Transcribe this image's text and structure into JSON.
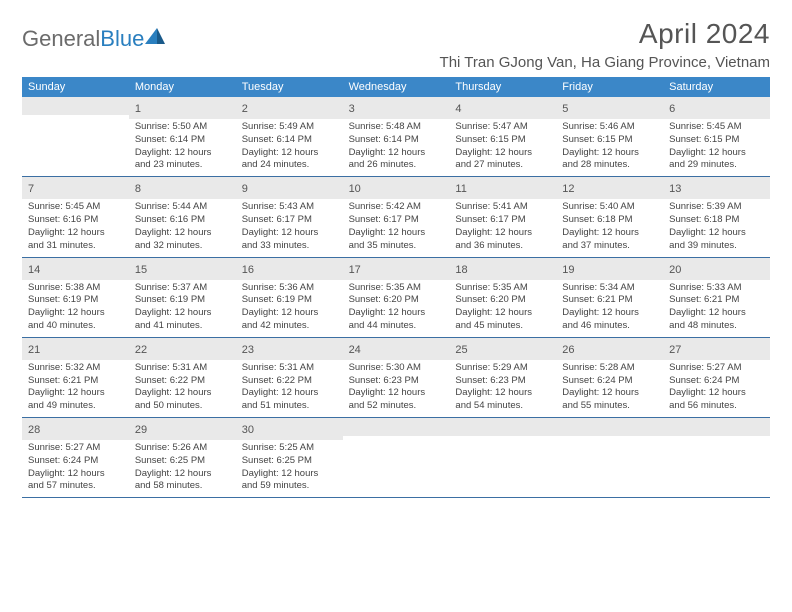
{
  "logo": {
    "text_gray": "General",
    "text_blue": "Blue"
  },
  "header": {
    "month_title": "April 2024",
    "location": "Thi Tran GJong Van, Ha Giang Province, Vietnam"
  },
  "day_names": [
    "Sunday",
    "Monday",
    "Tuesday",
    "Wednesday",
    "Thursday",
    "Friday",
    "Saturday"
  ],
  "colors": {
    "header_bg": "#3b87c8",
    "row_border": "#3b6fa3",
    "numbar_bg": "#e9e9e9",
    "text_body": "#444444",
    "text_muted": "#555555"
  },
  "weeks": [
    [
      null,
      {
        "n": "1",
        "sr": "Sunrise: 5:50 AM",
        "ss": "Sunset: 6:14 PM",
        "d1": "Daylight: 12 hours",
        "d2": "and 23 minutes."
      },
      {
        "n": "2",
        "sr": "Sunrise: 5:49 AM",
        "ss": "Sunset: 6:14 PM",
        "d1": "Daylight: 12 hours",
        "d2": "and 24 minutes."
      },
      {
        "n": "3",
        "sr": "Sunrise: 5:48 AM",
        "ss": "Sunset: 6:14 PM",
        "d1": "Daylight: 12 hours",
        "d2": "and 26 minutes."
      },
      {
        "n": "4",
        "sr": "Sunrise: 5:47 AM",
        "ss": "Sunset: 6:15 PM",
        "d1": "Daylight: 12 hours",
        "d2": "and 27 minutes."
      },
      {
        "n": "5",
        "sr": "Sunrise: 5:46 AM",
        "ss": "Sunset: 6:15 PM",
        "d1": "Daylight: 12 hours",
        "d2": "and 28 minutes."
      },
      {
        "n": "6",
        "sr": "Sunrise: 5:45 AM",
        "ss": "Sunset: 6:15 PM",
        "d1": "Daylight: 12 hours",
        "d2": "and 29 minutes."
      }
    ],
    [
      {
        "n": "7",
        "sr": "Sunrise: 5:45 AM",
        "ss": "Sunset: 6:16 PM",
        "d1": "Daylight: 12 hours",
        "d2": "and 31 minutes."
      },
      {
        "n": "8",
        "sr": "Sunrise: 5:44 AM",
        "ss": "Sunset: 6:16 PM",
        "d1": "Daylight: 12 hours",
        "d2": "and 32 minutes."
      },
      {
        "n": "9",
        "sr": "Sunrise: 5:43 AM",
        "ss": "Sunset: 6:17 PM",
        "d1": "Daylight: 12 hours",
        "d2": "and 33 minutes."
      },
      {
        "n": "10",
        "sr": "Sunrise: 5:42 AM",
        "ss": "Sunset: 6:17 PM",
        "d1": "Daylight: 12 hours",
        "d2": "and 35 minutes."
      },
      {
        "n": "11",
        "sr": "Sunrise: 5:41 AM",
        "ss": "Sunset: 6:17 PM",
        "d1": "Daylight: 12 hours",
        "d2": "and 36 minutes."
      },
      {
        "n": "12",
        "sr": "Sunrise: 5:40 AM",
        "ss": "Sunset: 6:18 PM",
        "d1": "Daylight: 12 hours",
        "d2": "and 37 minutes."
      },
      {
        "n": "13",
        "sr": "Sunrise: 5:39 AM",
        "ss": "Sunset: 6:18 PM",
        "d1": "Daylight: 12 hours",
        "d2": "and 39 minutes."
      }
    ],
    [
      {
        "n": "14",
        "sr": "Sunrise: 5:38 AM",
        "ss": "Sunset: 6:19 PM",
        "d1": "Daylight: 12 hours",
        "d2": "and 40 minutes."
      },
      {
        "n": "15",
        "sr": "Sunrise: 5:37 AM",
        "ss": "Sunset: 6:19 PM",
        "d1": "Daylight: 12 hours",
        "d2": "and 41 minutes."
      },
      {
        "n": "16",
        "sr": "Sunrise: 5:36 AM",
        "ss": "Sunset: 6:19 PM",
        "d1": "Daylight: 12 hours",
        "d2": "and 42 minutes."
      },
      {
        "n": "17",
        "sr": "Sunrise: 5:35 AM",
        "ss": "Sunset: 6:20 PM",
        "d1": "Daylight: 12 hours",
        "d2": "and 44 minutes."
      },
      {
        "n": "18",
        "sr": "Sunrise: 5:35 AM",
        "ss": "Sunset: 6:20 PM",
        "d1": "Daylight: 12 hours",
        "d2": "and 45 minutes."
      },
      {
        "n": "19",
        "sr": "Sunrise: 5:34 AM",
        "ss": "Sunset: 6:21 PM",
        "d1": "Daylight: 12 hours",
        "d2": "and 46 minutes."
      },
      {
        "n": "20",
        "sr": "Sunrise: 5:33 AM",
        "ss": "Sunset: 6:21 PM",
        "d1": "Daylight: 12 hours",
        "d2": "and 48 minutes."
      }
    ],
    [
      {
        "n": "21",
        "sr": "Sunrise: 5:32 AM",
        "ss": "Sunset: 6:21 PM",
        "d1": "Daylight: 12 hours",
        "d2": "and 49 minutes."
      },
      {
        "n": "22",
        "sr": "Sunrise: 5:31 AM",
        "ss": "Sunset: 6:22 PM",
        "d1": "Daylight: 12 hours",
        "d2": "and 50 minutes."
      },
      {
        "n": "23",
        "sr": "Sunrise: 5:31 AM",
        "ss": "Sunset: 6:22 PM",
        "d1": "Daylight: 12 hours",
        "d2": "and 51 minutes."
      },
      {
        "n": "24",
        "sr": "Sunrise: 5:30 AM",
        "ss": "Sunset: 6:23 PM",
        "d1": "Daylight: 12 hours",
        "d2": "and 52 minutes."
      },
      {
        "n": "25",
        "sr": "Sunrise: 5:29 AM",
        "ss": "Sunset: 6:23 PM",
        "d1": "Daylight: 12 hours",
        "d2": "and 54 minutes."
      },
      {
        "n": "26",
        "sr": "Sunrise: 5:28 AM",
        "ss": "Sunset: 6:24 PM",
        "d1": "Daylight: 12 hours",
        "d2": "and 55 minutes."
      },
      {
        "n": "27",
        "sr": "Sunrise: 5:27 AM",
        "ss": "Sunset: 6:24 PM",
        "d1": "Daylight: 12 hours",
        "d2": "and 56 minutes."
      }
    ],
    [
      {
        "n": "28",
        "sr": "Sunrise: 5:27 AM",
        "ss": "Sunset: 6:24 PM",
        "d1": "Daylight: 12 hours",
        "d2": "and 57 minutes."
      },
      {
        "n": "29",
        "sr": "Sunrise: 5:26 AM",
        "ss": "Sunset: 6:25 PM",
        "d1": "Daylight: 12 hours",
        "d2": "and 58 minutes."
      },
      {
        "n": "30",
        "sr": "Sunrise: 5:25 AM",
        "ss": "Sunset: 6:25 PM",
        "d1": "Daylight: 12 hours",
        "d2": "and 59 minutes."
      },
      null,
      null,
      null,
      null
    ]
  ]
}
